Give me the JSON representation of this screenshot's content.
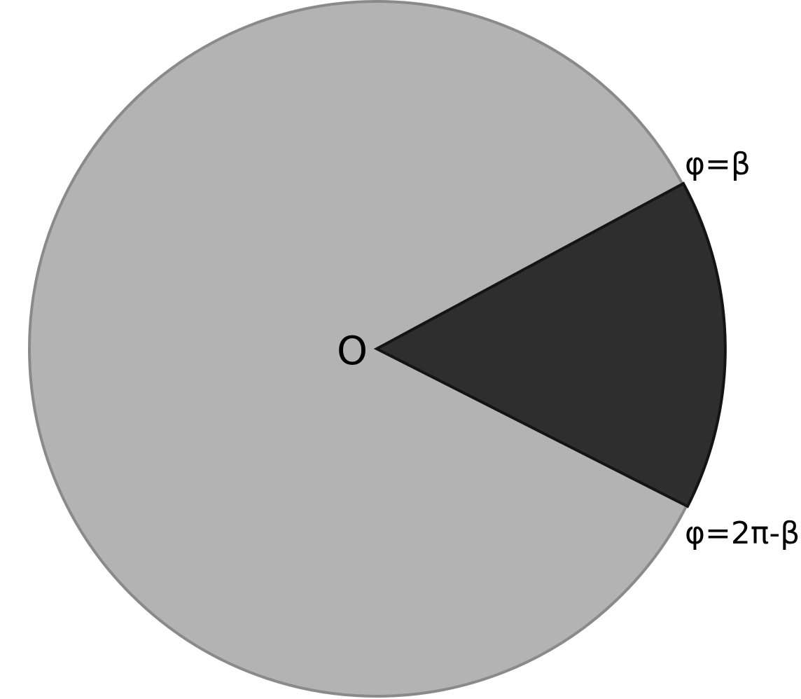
{
  "diagram": {
    "center_label": "O",
    "ray_labels": {
      "upper": "φ=β",
      "lower": "φ=2π-β"
    },
    "colors": {
      "disc_fill": "#b3b3b3",
      "disc_stroke": "#8a8a8a",
      "sector_fill": "#2e2e2e",
      "sector_stroke": "#141414"
    }
  }
}
